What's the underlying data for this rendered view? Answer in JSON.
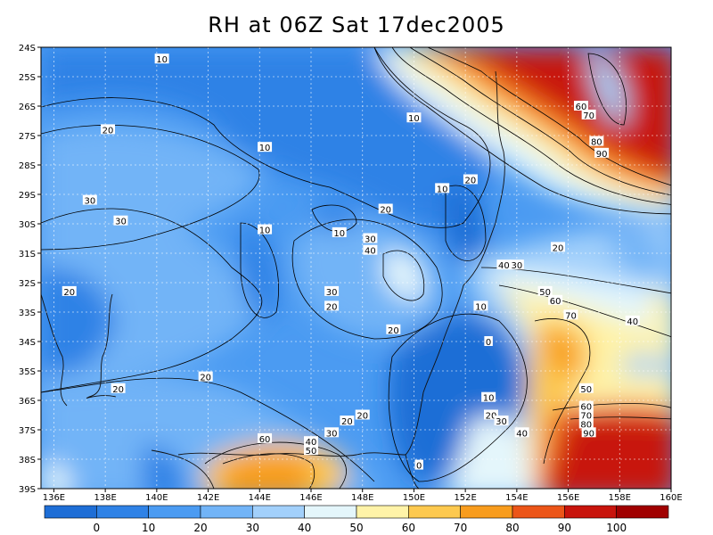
{
  "title": "RH at 06Z Sat 17dec2005",
  "map": {
    "lon_labels": [
      "136E",
      "138E",
      "140E",
      "142E",
      "144E",
      "146E",
      "148E",
      "150E",
      "152E",
      "154E",
      "156E",
      "158E",
      "160E"
    ],
    "lat_labels": [
      "24S",
      "25S",
      "26S",
      "27S",
      "28S",
      "29S",
      "30S",
      "31S",
      "32S",
      "33S",
      "34S",
      "35S",
      "36S",
      "37S",
      "38S",
      "39S"
    ],
    "lon_range": [
      135.5,
      160
    ],
    "lat_range": [
      -24,
      -39
    ],
    "contour_labels": [
      {
        "text": "10",
        "lon": 140.2,
        "lat": -24.4
      },
      {
        "text": "20",
        "lon": 138.1,
        "lat": -26.8
      },
      {
        "text": "10",
        "lon": 150.0,
        "lat": -26.4
      },
      {
        "text": "10",
        "lon": 144.2,
        "lat": -27.4
      },
      {
        "text": "30",
        "lon": 137.4,
        "lat": -29.2
      },
      {
        "text": "20",
        "lon": 152.2,
        "lat": -28.5
      },
      {
        "text": "10",
        "lon": 151.1,
        "lat": -28.8
      },
      {
        "text": "30",
        "lon": 138.6,
        "lat": -29.9
      },
      {
        "text": "20",
        "lon": 148.9,
        "lat": -29.5
      },
      {
        "text": "10",
        "lon": 144.2,
        "lat": -30.2
      },
      {
        "text": "10",
        "lon": 147.1,
        "lat": -30.3
      },
      {
        "text": "30",
        "lon": 148.3,
        "lat": -30.5
      },
      {
        "text": "40",
        "lon": 148.3,
        "lat": -30.9
      },
      {
        "text": "20",
        "lon": 155.6,
        "lat": -30.8
      },
      {
        "text": "40",
        "lon": 153.5,
        "lat": -31.4
      },
      {
        "text": "30",
        "lon": 154.0,
        "lat": -31.4
      },
      {
        "text": "20",
        "lon": 136.6,
        "lat": -32.3
      },
      {
        "text": "30",
        "lon": 146.8,
        "lat": -32.3
      },
      {
        "text": "20",
        "lon": 146.8,
        "lat": -32.8
      },
      {
        "text": "50",
        "lon": 155.1,
        "lat": -32.3
      },
      {
        "text": "60",
        "lon": 155.5,
        "lat": -32.6
      },
      {
        "text": "10",
        "lon": 152.6,
        "lat": -32.8
      },
      {
        "text": "70",
        "lon": 156.1,
        "lat": -33.1
      },
      {
        "text": "40",
        "lon": 158.5,
        "lat": -33.3
      },
      {
        "text": "20",
        "lon": 149.2,
        "lat": -33.6
      },
      {
        "text": "0",
        "lon": 152.9,
        "lat": -34.0
      },
      {
        "text": "20",
        "lon": 141.9,
        "lat": -35.2
      },
      {
        "text": "20",
        "lon": 138.5,
        "lat": -35.6
      },
      {
        "text": "50",
        "lon": 156.7,
        "lat": -35.6
      },
      {
        "text": "10",
        "lon": 152.9,
        "lat": -35.9
      },
      {
        "text": "60",
        "lon": 156.7,
        "lat": -36.2
      },
      {
        "text": "20",
        "lon": 148.0,
        "lat": -36.5
      },
      {
        "text": "20",
        "lon": 153.0,
        "lat": -36.5
      },
      {
        "text": "30",
        "lon": 153.4,
        "lat": -36.7
      },
      {
        "text": "20",
        "lon": 147.4,
        "lat": -36.7
      },
      {
        "text": "70",
        "lon": 156.7,
        "lat": -36.5
      },
      {
        "text": "80",
        "lon": 156.7,
        "lat": -36.8
      },
      {
        "text": "90",
        "lon": 156.8,
        "lat": -37.1
      },
      {
        "text": "40",
        "lon": 154.2,
        "lat": -37.1
      },
      {
        "text": "30",
        "lon": 146.8,
        "lat": -37.1
      },
      {
        "text": "60",
        "lon": 144.2,
        "lat": -37.3
      },
      {
        "text": "40",
        "lon": 146.0,
        "lat": -37.4
      },
      {
        "text": "50",
        "lon": 146.0,
        "lat": -37.7
      },
      {
        "text": "0",
        "lon": 150.2,
        "lat": -38.2
      },
      {
        "text": "60",
        "lon": 156.5,
        "lat": -26.0
      },
      {
        "text": "70",
        "lon": 156.8,
        "lat": -26.3
      },
      {
        "text": "80",
        "lon": 157.1,
        "lat": -27.2
      },
      {
        "text": "90",
        "lon": 157.3,
        "lat": -27.6
      }
    ]
  },
  "colorbar": {
    "labels": [
      "0",
      "10",
      "20",
      "30",
      "40",
      "50",
      "60",
      "70",
      "80",
      "90",
      "100"
    ],
    "colors": [
      "#1e6ed6",
      "#2f82e6",
      "#4b9bf2",
      "#72b4f7",
      "#a2d0fb",
      "#e4f6fb",
      "#fff3a8",
      "#fdc94f",
      "#f89c1d",
      "#ec5518",
      "#c8140c",
      "#a00000"
    ]
  }
}
